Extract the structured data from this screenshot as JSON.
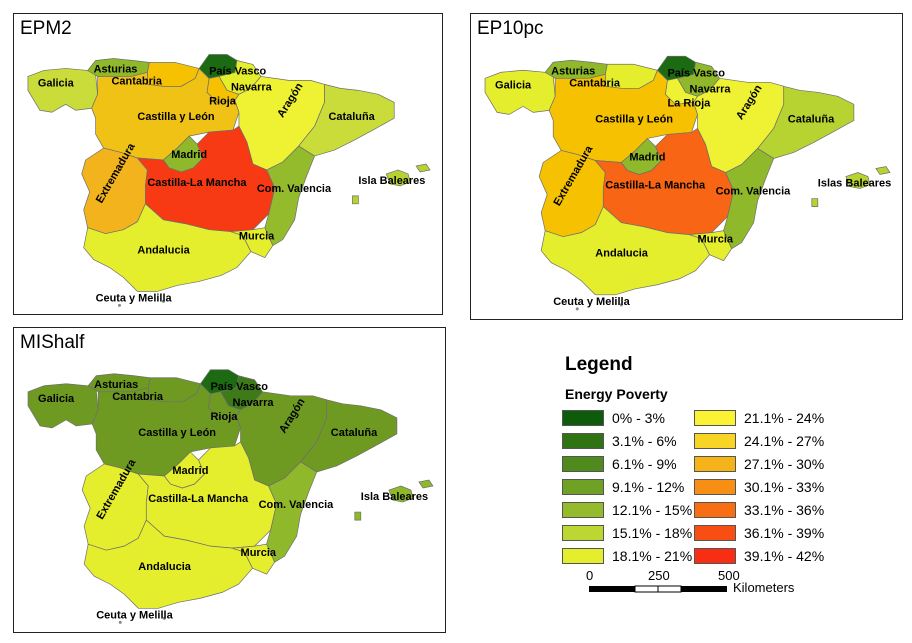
{
  "panels": [
    {
      "title": "EPM2",
      "fills": {
        "galicia": "#c9dc3a",
        "asturias": "#8fb82b",
        "cantabria": "#f5c100",
        "paisvasco": "#1c6b12",
        "navarra": "#e4ee2c",
        "rioja": "#f5c100",
        "castilla": "#f1c216",
        "aragon": "#eef233",
        "cataluna": "#c9dc3a",
        "madrid": "#8fb82b",
        "extremadura": "#f3b31c",
        "clamancha": "#f73a14",
        "valencia": "#93bb2c",
        "andalucia": "#e4ee2c",
        "murcia": "#e4ee2c",
        "baleares": "#b6d332"
      },
      "labels": {
        "galicia": "Galicia",
        "asturias": "Asturias",
        "cantabria": "Cantabria",
        "paisvasco": "País Vasco",
        "navarra": "Navarra",
        "rioja": "Rioja",
        "castilla": "Castilla y León",
        "aragon": "Aragón",
        "cataluna": "Cataluña",
        "madrid": "Madrid",
        "extremadura": "Extremadura",
        "clamancha": "Castilla-La Mancha",
        "valencia": "Com. Valencia",
        "baleares": "Isla Baleares",
        "andalucia": "Andalucia",
        "murcia": "Murcia",
        "ceuta": "Ceuta y Melilla"
      }
    },
    {
      "title": "EP10pc",
      "fills": {
        "galicia": "#e4ee2c",
        "asturias": "#8fb82b",
        "cantabria": "#e4ee2c",
        "paisvasco": "#1c6b12",
        "navarra": "#8fb82b",
        "rioja": "#eef233",
        "castilla": "#f5c100",
        "aragon": "#eef233",
        "cataluna": "#b6d332",
        "madrid": "#8fb82b",
        "extremadura": "#f5c100",
        "clamancha": "#f86514",
        "valencia": "#8fb82b",
        "andalucia": "#e4ee2c",
        "murcia": "#e4ee2c",
        "baleares": "#b6d332"
      },
      "labels": {
        "galicia": "Galicia",
        "asturias": "Asturias",
        "cantabria": "Cantabria",
        "paisvasco": "País Vasco",
        "navarra": "Navarra",
        "rioja": "La Rioja",
        "castilla": "Castilla y León",
        "aragon": "Aragón",
        "cataluna": "Cataluña",
        "madrid": "Madrid",
        "extremadura": "Extremadura",
        "clamancha": "Castilla-La Mancha",
        "valencia": "Com. Valencia",
        "baleares": "Islas Baleares",
        "andalucia": "Andalucia",
        "murcia": "Murcia",
        "ceuta": "Ceuta y Melilla"
      }
    },
    {
      "title": "MIShalf",
      "fills": {
        "galicia": "#6e9a22",
        "asturias": "#6e9a22",
        "cantabria": "#6e9a22",
        "paisvasco": "#1c6b12",
        "navarra": "#3f7a1a",
        "rioja": "#6e9a22",
        "castilla": "#6e9a22",
        "aragon": "#6e9a22",
        "cataluna": "#6e9a22",
        "madrid": "#e4ee2c",
        "extremadura": "#e4ee2c",
        "clamancha": "#e4ee2c",
        "valencia": "#8fb82b",
        "andalucia": "#e4ee2c",
        "murcia": "#e4ee2c",
        "baleares": "#8fb82b"
      },
      "labels": {
        "galicia": "Galicia",
        "asturias": "Asturias",
        "cantabria": "Cantabria",
        "paisvasco": "País Vasco",
        "navarra": "Navarra",
        "rioja": "Rioja",
        "castilla": "Castilla y León",
        "aragon": "Aragón",
        "cataluna": "Cataluña",
        "madrid": "Madrid",
        "extremadura": "Extremadura",
        "clamancha": "Castilla-La Mancha",
        "valencia": "Com. Valencia",
        "baleares": "Isla Baleares",
        "andalucia": "Andalucia",
        "murcia": "Murcia",
        "ceuta": "Ceuta y Melilla"
      }
    }
  ],
  "legend": {
    "title": "Legend",
    "heading": "Energy Poverty",
    "items": [
      {
        "label": "0% - 3%",
        "color": "#0e5b0a"
      },
      {
        "label": "3.1% - 6%",
        "color": "#2f7313"
      },
      {
        "label": "6.1% - 9%",
        "color": "#4f8a1c"
      },
      {
        "label": "9.1% - 12%",
        "color": "#6fa224"
      },
      {
        "label": "12.1% - 15%",
        "color": "#93bb2c"
      },
      {
        "label": "15.1% - 18%",
        "color": "#bcd632"
      },
      {
        "label": "18.1% - 21%",
        "color": "#e4ee2c"
      },
      {
        "label": "21.1% - 24%",
        "color": "#fbf233"
      },
      {
        "label": "24.1% - 27%",
        "color": "#f8d424"
      },
      {
        "label": "27.1% - 30%",
        "color": "#f5b31a"
      },
      {
        "label": "30.1% - 33%",
        "color": "#f68f14"
      },
      {
        "label": "33.1% - 36%",
        "color": "#f76f12"
      },
      {
        "label": "36.1% - 39%",
        "color": "#f84e13"
      },
      {
        "label": "39.1% - 42%",
        "color": "#f72d14"
      }
    ]
  },
  "scale": {
    "ticks": [
      "0",
      "250",
      "500"
    ],
    "unit": "Kilometers"
  }
}
